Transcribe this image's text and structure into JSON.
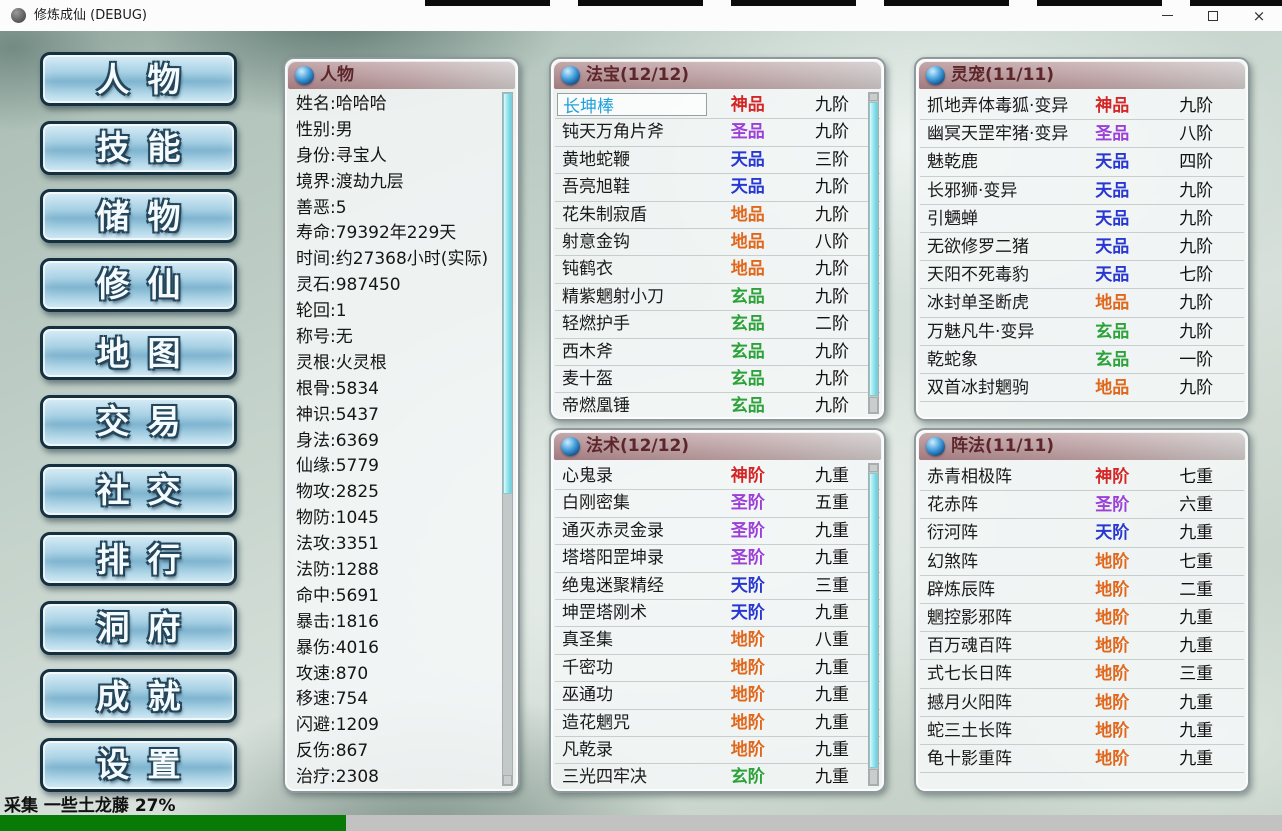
{
  "window": {
    "title": "修炼成仙 (DEBUG)",
    "icons": {
      "minimize-icon": "css-line",
      "maximize-icon": "css-box",
      "close-icon": "×"
    }
  },
  "sidebar": {
    "buttons": [
      {
        "key": "character",
        "label": "人物"
      },
      {
        "key": "skills",
        "label": "技能"
      },
      {
        "key": "storage",
        "label": "储物"
      },
      {
        "key": "cultivation",
        "label": "修仙"
      },
      {
        "key": "map",
        "label": "地图"
      },
      {
        "key": "trade",
        "label": "交易"
      },
      {
        "key": "social",
        "label": "社交"
      },
      {
        "key": "ranking",
        "label": "排行"
      },
      {
        "key": "cave",
        "label": "洞府"
      },
      {
        "key": "achievements",
        "label": "成就"
      },
      {
        "key": "settings",
        "label": "设置"
      }
    ]
  },
  "character": {
    "title": "人物",
    "stats": [
      {
        "label": "姓名",
        "value": "哈哈哈"
      },
      {
        "label": "性别",
        "value": "男"
      },
      {
        "label": "身份",
        "value": "寻宝人"
      },
      {
        "label": "境界",
        "value": "渡劫九层"
      },
      {
        "label": "善恶",
        "value": "5"
      },
      {
        "label": "寿命",
        "value": "79392年229天"
      },
      {
        "label": "时间",
        "value": "约27368小时(实际)"
      },
      {
        "label": "灵石",
        "value": "987450"
      },
      {
        "label": "轮回",
        "value": "1"
      },
      {
        "label": "称号",
        "value": "无"
      },
      {
        "label": "灵根",
        "value": "火灵根"
      },
      {
        "label": "根骨",
        "value": "5834"
      },
      {
        "label": "神识",
        "value": "5437"
      },
      {
        "label": "身法",
        "value": "6369"
      },
      {
        "label": "仙缘",
        "value": "5779"
      },
      {
        "label": "物攻",
        "value": "2825"
      },
      {
        "label": "物防",
        "value": "1045"
      },
      {
        "label": "法攻",
        "value": "3351"
      },
      {
        "label": "法防",
        "value": "1288"
      },
      {
        "label": "命中",
        "value": "5691"
      },
      {
        "label": "暴击",
        "value": "1816"
      },
      {
        "label": "暴伤",
        "value": "4016"
      },
      {
        "label": "攻速",
        "value": "870"
      },
      {
        "label": "移速",
        "value": "754"
      },
      {
        "label": "闪避",
        "value": "1209"
      },
      {
        "label": "反伤",
        "value": "867"
      },
      {
        "label": "治疗",
        "value": "2308"
      }
    ]
  },
  "tier_colors": {
    "神": "#d42626",
    "圣": "#9c3ed8",
    "天": "#2837d2",
    "地": "#e0671c",
    "玄": "#2da23a"
  },
  "panels": [
    {
      "id": "treasures",
      "title": "法宝(12/12)",
      "rows_class": "rows-12",
      "scrollbar": "full",
      "items": [
        {
          "name": "长坤棒",
          "tier": "神品",
          "grade": "九阶",
          "selected": true
        },
        {
          "name": "钝天万角片斧",
          "tier": "圣品",
          "grade": "九阶"
        },
        {
          "name": "黄地蛇鞭",
          "tier": "天品",
          "grade": "三阶"
        },
        {
          "name": "吾亮旭鞋",
          "tier": "天品",
          "grade": "九阶"
        },
        {
          "name": "花朱制寂盾",
          "tier": "地品",
          "grade": "九阶"
        },
        {
          "name": "射意金钩",
          "tier": "地品",
          "grade": "八阶"
        },
        {
          "name": "钝鹤衣",
          "tier": "地品",
          "grade": "九阶"
        },
        {
          "name": "精紫魍射小刀",
          "tier": "玄品",
          "grade": "九阶"
        },
        {
          "name": "轻燃护手",
          "tier": "玄品",
          "grade": "二阶"
        },
        {
          "name": "西木斧",
          "tier": "玄品",
          "grade": "九阶"
        },
        {
          "name": "麦十盔",
          "tier": "玄品",
          "grade": "九阶"
        },
        {
          "name": "帝燃凰锤",
          "tier": "玄品",
          "grade": "九阶"
        }
      ]
    },
    {
      "id": "pets",
      "title": "灵宠(11/11)",
      "rows_class": "rows-11",
      "scrollbar": "none",
      "items": [
        {
          "name": "抓地弄体毒狐·变异",
          "tier": "神品",
          "grade": "九阶"
        },
        {
          "name": "幽冥天罡牢猪·变异",
          "tier": "圣品",
          "grade": "八阶"
        },
        {
          "name": "魅乾鹿",
          "tier": "天品",
          "grade": "四阶"
        },
        {
          "name": "长邪狮·变异",
          "tier": "天品",
          "grade": "九阶"
        },
        {
          "name": "引魉蝉",
          "tier": "天品",
          "grade": "九阶"
        },
        {
          "name": "无欲修罗二猪",
          "tier": "天品",
          "grade": "九阶"
        },
        {
          "name": "天阳不死毒豹",
          "tier": "天品",
          "grade": "七阶"
        },
        {
          "name": "冰封单圣断虎",
          "tier": "地品",
          "grade": "九阶"
        },
        {
          "name": "万魅凡牛·变异",
          "tier": "玄品",
          "grade": "九阶"
        },
        {
          "name": "乾蛇象",
          "tier": "玄品",
          "grade": "一阶"
        },
        {
          "name": "双首冰封魍驹",
          "tier": "地品",
          "grade": "九阶"
        }
      ]
    },
    {
      "id": "spells",
      "title": "法术(12/12)",
      "rows_class": "rows-12",
      "scrollbar": "full",
      "items": [
        {
          "name": "心鬼录",
          "tier": "神阶",
          "grade": "九重"
        },
        {
          "name": "白刚密集",
          "tier": "圣阶",
          "grade": "五重"
        },
        {
          "name": "通灭赤灵金录",
          "tier": "圣阶",
          "grade": "九重"
        },
        {
          "name": "塔塔阳罡坤录",
          "tier": "圣阶",
          "grade": "九重"
        },
        {
          "name": "绝鬼迷聚精经",
          "tier": "天阶",
          "grade": "三重"
        },
        {
          "name": "坤罡塔刚术",
          "tier": "天阶",
          "grade": "九重"
        },
        {
          "name": "真圣集",
          "tier": "地阶",
          "grade": "八重"
        },
        {
          "name": "千密功",
          "tier": "地阶",
          "grade": "九重"
        },
        {
          "name": "巫通功",
          "tier": "地阶",
          "grade": "九重"
        },
        {
          "name": "造花魍咒",
          "tier": "地阶",
          "grade": "九重"
        },
        {
          "name": "凡乾录",
          "tier": "地阶",
          "grade": "九重"
        },
        {
          "name": "三光四牢决",
          "tier": "玄阶",
          "grade": "九重"
        }
      ]
    },
    {
      "id": "formations",
      "title": "阵法(11/11)",
      "rows_class": "rows-11",
      "scrollbar": "none",
      "items": [
        {
          "name": "赤青相极阵",
          "tier": "神阶",
          "grade": "七重"
        },
        {
          "name": "花赤阵",
          "tier": "圣阶",
          "grade": "六重"
        },
        {
          "name": "衍河阵",
          "tier": "天阶",
          "grade": "九重"
        },
        {
          "name": "幻煞阵",
          "tier": "地阶",
          "grade": "七重"
        },
        {
          "name": "辟炼辰阵",
          "tier": "地阶",
          "grade": "二重"
        },
        {
          "name": "魍控影邪阵",
          "tier": "地阶",
          "grade": "九重"
        },
        {
          "name": "百万魂百阵",
          "tier": "地阶",
          "grade": "九重"
        },
        {
          "name": "式七长日阵",
          "tier": "地阶",
          "grade": "三重"
        },
        {
          "name": "撼月火阳阵",
          "tier": "地阶",
          "grade": "九重"
        },
        {
          "name": "蛇三土长阵",
          "tier": "地阶",
          "grade": "九重"
        },
        {
          "name": "龟十影重阵",
          "tier": "地阶",
          "grade": "九重"
        }
      ]
    }
  ],
  "status": {
    "text": "采集 一些土龙藤 27%",
    "progress_percent": 27
  }
}
